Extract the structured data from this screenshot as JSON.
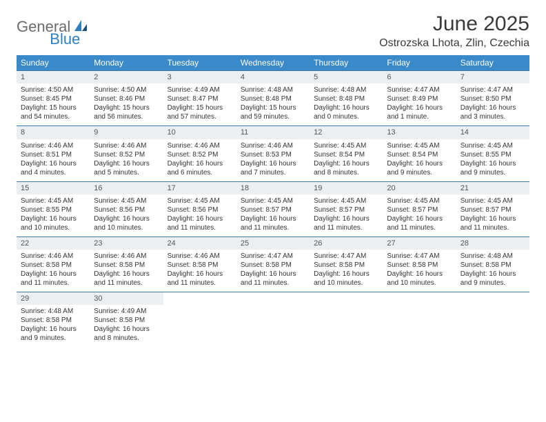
{
  "brand": {
    "part1": "General",
    "part2": "Blue"
  },
  "title": "June 2025",
  "location": "Ostrozska Lhota, Zlin, Czechia",
  "colors": {
    "header_bg": "#3a89c9",
    "header_fg": "#ffffff",
    "daynum_bg": "#eceff1",
    "row_border": "#3a7aa8",
    "logo_gray": "#6b6b6b",
    "logo_blue": "#2f7fc2"
  },
  "weekdays": [
    "Sunday",
    "Monday",
    "Tuesday",
    "Wednesday",
    "Thursday",
    "Friday",
    "Saturday"
  ],
  "weeks": [
    [
      {
        "n": "1",
        "sr": "Sunrise: 4:50 AM",
        "ss": "Sunset: 8:45 PM",
        "dl": "Daylight: 15 hours and 54 minutes."
      },
      {
        "n": "2",
        "sr": "Sunrise: 4:50 AM",
        "ss": "Sunset: 8:46 PM",
        "dl": "Daylight: 15 hours and 56 minutes."
      },
      {
        "n": "3",
        "sr": "Sunrise: 4:49 AM",
        "ss": "Sunset: 8:47 PM",
        "dl": "Daylight: 15 hours and 57 minutes."
      },
      {
        "n": "4",
        "sr": "Sunrise: 4:48 AM",
        "ss": "Sunset: 8:48 PM",
        "dl": "Daylight: 15 hours and 59 minutes."
      },
      {
        "n": "5",
        "sr": "Sunrise: 4:48 AM",
        "ss": "Sunset: 8:48 PM",
        "dl": "Daylight: 16 hours and 0 minutes."
      },
      {
        "n": "6",
        "sr": "Sunrise: 4:47 AM",
        "ss": "Sunset: 8:49 PM",
        "dl": "Daylight: 16 hours and 1 minute."
      },
      {
        "n": "7",
        "sr": "Sunrise: 4:47 AM",
        "ss": "Sunset: 8:50 PM",
        "dl": "Daylight: 16 hours and 3 minutes."
      }
    ],
    [
      {
        "n": "8",
        "sr": "Sunrise: 4:46 AM",
        "ss": "Sunset: 8:51 PM",
        "dl": "Daylight: 16 hours and 4 minutes."
      },
      {
        "n": "9",
        "sr": "Sunrise: 4:46 AM",
        "ss": "Sunset: 8:52 PM",
        "dl": "Daylight: 16 hours and 5 minutes."
      },
      {
        "n": "10",
        "sr": "Sunrise: 4:46 AM",
        "ss": "Sunset: 8:52 PM",
        "dl": "Daylight: 16 hours and 6 minutes."
      },
      {
        "n": "11",
        "sr": "Sunrise: 4:46 AM",
        "ss": "Sunset: 8:53 PM",
        "dl": "Daylight: 16 hours and 7 minutes."
      },
      {
        "n": "12",
        "sr": "Sunrise: 4:45 AM",
        "ss": "Sunset: 8:54 PM",
        "dl": "Daylight: 16 hours and 8 minutes."
      },
      {
        "n": "13",
        "sr": "Sunrise: 4:45 AM",
        "ss": "Sunset: 8:54 PM",
        "dl": "Daylight: 16 hours and 9 minutes."
      },
      {
        "n": "14",
        "sr": "Sunrise: 4:45 AM",
        "ss": "Sunset: 8:55 PM",
        "dl": "Daylight: 16 hours and 9 minutes."
      }
    ],
    [
      {
        "n": "15",
        "sr": "Sunrise: 4:45 AM",
        "ss": "Sunset: 8:55 PM",
        "dl": "Daylight: 16 hours and 10 minutes."
      },
      {
        "n": "16",
        "sr": "Sunrise: 4:45 AM",
        "ss": "Sunset: 8:56 PM",
        "dl": "Daylight: 16 hours and 10 minutes."
      },
      {
        "n": "17",
        "sr": "Sunrise: 4:45 AM",
        "ss": "Sunset: 8:56 PM",
        "dl": "Daylight: 16 hours and 11 minutes."
      },
      {
        "n": "18",
        "sr": "Sunrise: 4:45 AM",
        "ss": "Sunset: 8:57 PM",
        "dl": "Daylight: 16 hours and 11 minutes."
      },
      {
        "n": "19",
        "sr": "Sunrise: 4:45 AM",
        "ss": "Sunset: 8:57 PM",
        "dl": "Daylight: 16 hours and 11 minutes."
      },
      {
        "n": "20",
        "sr": "Sunrise: 4:45 AM",
        "ss": "Sunset: 8:57 PM",
        "dl": "Daylight: 16 hours and 11 minutes."
      },
      {
        "n": "21",
        "sr": "Sunrise: 4:45 AM",
        "ss": "Sunset: 8:57 PM",
        "dl": "Daylight: 16 hours and 11 minutes."
      }
    ],
    [
      {
        "n": "22",
        "sr": "Sunrise: 4:46 AM",
        "ss": "Sunset: 8:58 PM",
        "dl": "Daylight: 16 hours and 11 minutes."
      },
      {
        "n": "23",
        "sr": "Sunrise: 4:46 AM",
        "ss": "Sunset: 8:58 PM",
        "dl": "Daylight: 16 hours and 11 minutes."
      },
      {
        "n": "24",
        "sr": "Sunrise: 4:46 AM",
        "ss": "Sunset: 8:58 PM",
        "dl": "Daylight: 16 hours and 11 minutes."
      },
      {
        "n": "25",
        "sr": "Sunrise: 4:47 AM",
        "ss": "Sunset: 8:58 PM",
        "dl": "Daylight: 16 hours and 11 minutes."
      },
      {
        "n": "26",
        "sr": "Sunrise: 4:47 AM",
        "ss": "Sunset: 8:58 PM",
        "dl": "Daylight: 16 hours and 10 minutes."
      },
      {
        "n": "27",
        "sr": "Sunrise: 4:47 AM",
        "ss": "Sunset: 8:58 PM",
        "dl": "Daylight: 16 hours and 10 minutes."
      },
      {
        "n": "28",
        "sr": "Sunrise: 4:48 AM",
        "ss": "Sunset: 8:58 PM",
        "dl": "Daylight: 16 hours and 9 minutes."
      }
    ],
    [
      {
        "n": "29",
        "sr": "Sunrise: 4:48 AM",
        "ss": "Sunset: 8:58 PM",
        "dl": "Daylight: 16 hours and 9 minutes."
      },
      {
        "n": "30",
        "sr": "Sunrise: 4:49 AM",
        "ss": "Sunset: 8:58 PM",
        "dl": "Daylight: 16 hours and 8 minutes."
      },
      null,
      null,
      null,
      null,
      null
    ]
  ]
}
